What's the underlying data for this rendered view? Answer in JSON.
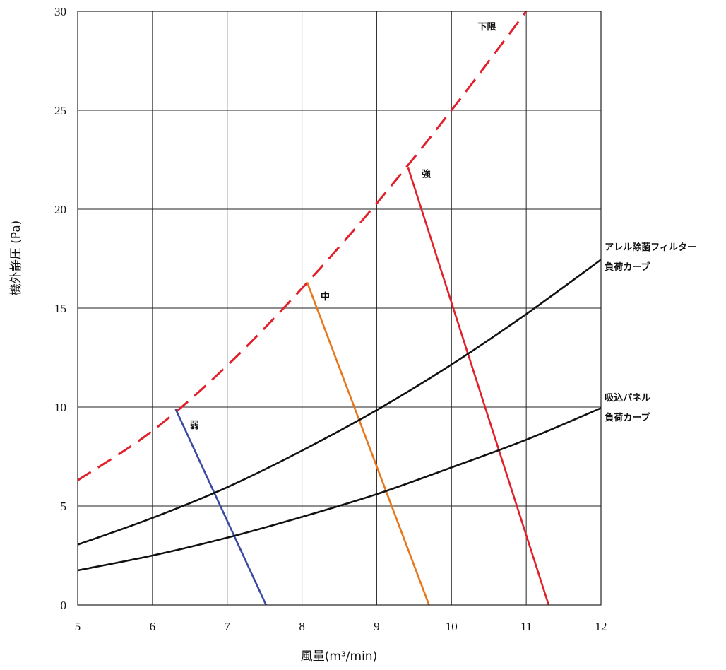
{
  "chart_data": {
    "type": "line",
    "xlabel": "風量(m³/min)",
    "ylabel": "機外静圧 (Pa)",
    "xlim": [
      5,
      12
    ],
    "ylim": [
      0,
      30
    ],
    "xticks": [
      5,
      6,
      7,
      8,
      9,
      10,
      11,
      12
    ],
    "yticks": [
      0,
      5,
      10,
      15,
      20,
      25,
      30
    ],
    "grid": true,
    "series": [
      {
        "name": "下限",
        "color": "#e0202a",
        "style": "dashed",
        "points": [
          [
            5,
            6.3
          ],
          [
            6,
            8.8
          ],
          [
            7,
            12.1
          ],
          [
            8,
            16.0
          ],
          [
            9,
            20.3
          ],
          [
            10,
            25.0
          ],
          [
            11,
            30.0
          ]
        ]
      },
      {
        "name": "強",
        "color": "#e0202a",
        "style": "solid",
        "points": [
          [
            9.42,
            22.1
          ],
          [
            11.3,
            0
          ]
        ]
      },
      {
        "name": "中",
        "color": "#e8761a",
        "style": "solid",
        "points": [
          [
            8.07,
            16.3
          ],
          [
            9.7,
            0
          ]
        ]
      },
      {
        "name": "弱",
        "color": "#3a4aa0",
        "style": "solid",
        "points": [
          [
            6.31,
            9.9
          ],
          [
            7.52,
            0
          ]
        ]
      },
      {
        "name": "アレル除菌フィルター負荷カーブ",
        "color": "#111111",
        "style": "solid",
        "points": [
          [
            5,
            3.05
          ],
          [
            6,
            4.4
          ],
          [
            7,
            5.95
          ],
          [
            8,
            7.8
          ],
          [
            9,
            9.85
          ],
          [
            10,
            12.15
          ],
          [
            11,
            14.7
          ],
          [
            12,
            17.45
          ]
        ]
      },
      {
        "name": "吸込パネル負荷カーブ",
        "color": "#111111",
        "style": "solid",
        "points": [
          [
            5,
            1.75
          ],
          [
            6,
            2.5
          ],
          [
            7,
            3.4
          ],
          [
            8,
            4.45
          ],
          [
            9,
            5.6
          ],
          [
            10,
            6.95
          ],
          [
            11,
            8.35
          ],
          [
            12,
            9.95
          ]
        ]
      }
    ],
    "labels": [
      {
        "text": "下限",
        "x": 10.35,
        "y": 29.25
      },
      {
        "text": "強",
        "x": 9.6,
        "y": 21.8
      },
      {
        "text": "中",
        "x": 8.25,
        "y": 15.6
      },
      {
        "text": "弱",
        "x": 6.5,
        "y": 9.1
      },
      {
        "text": "アレル除菌フィルター",
        "x": 12.05,
        "y": 18.1
      },
      {
        "text": "負荷カーブ",
        "x": 12.05,
        "y": 17.1
      },
      {
        "text": "吸込パネル",
        "x": 12.05,
        "y": 10.5
      },
      {
        "text": "負荷カーブ",
        "x": 12.05,
        "y": 9.5
      }
    ]
  }
}
